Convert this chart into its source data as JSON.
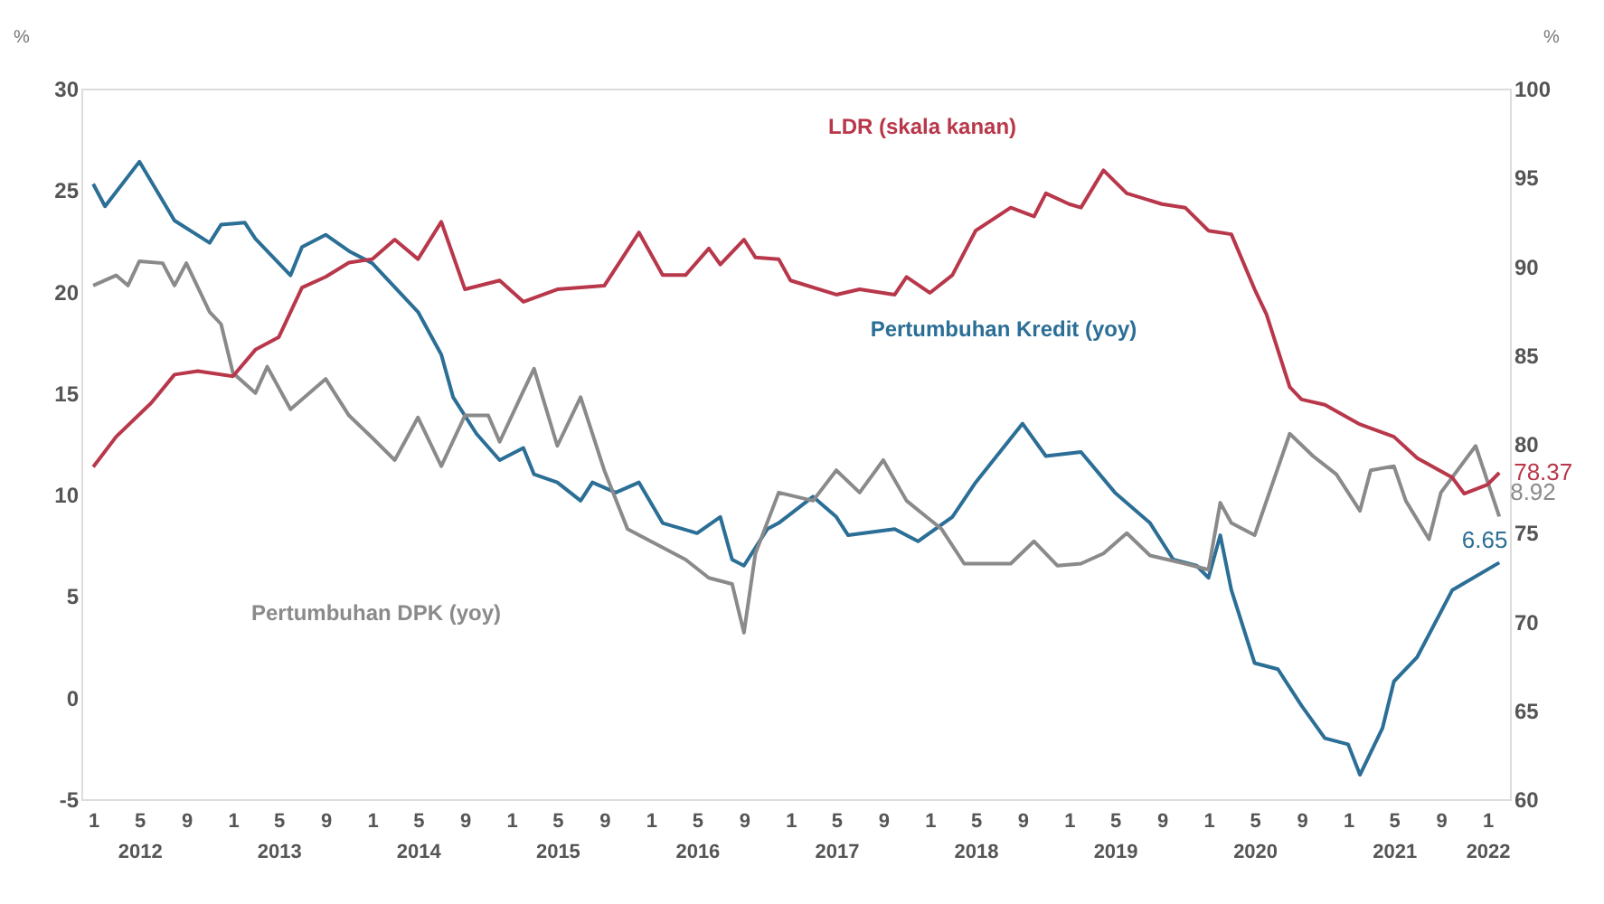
{
  "chart_data": {
    "type": "line",
    "ylabel": "%",
    "y2label": "%",
    "xlim": [
      "2011-12",
      "2022-03"
    ],
    "xticks": [
      {
        "value": "2012-01",
        "label": "1"
      },
      {
        "value": "2012-05",
        "label": "5\n2012"
      },
      {
        "value": "2012-09",
        "label": "9"
      },
      {
        "value": "2013-01",
        "label": "1"
      },
      {
        "value": "2013-05",
        "label": "5\n2013"
      },
      {
        "value": "2013-09",
        "label": "9"
      },
      {
        "value": "2014-01",
        "label": "1"
      },
      {
        "value": "2014-05",
        "label": "5\n2014"
      },
      {
        "value": "2014-09",
        "label": "9"
      },
      {
        "value": "2015-01",
        "label": "1"
      },
      {
        "value": "2015-05",
        "label": "5\n2015"
      },
      {
        "value": "2015-09",
        "label": "9"
      },
      {
        "value": "2016-01",
        "label": "1"
      },
      {
        "value": "2016-05",
        "label": "5\n2016"
      },
      {
        "value": "2016-09",
        "label": "9"
      },
      {
        "value": "2017-01",
        "label": "1"
      },
      {
        "value": "2017-05",
        "label": "5\n2017"
      },
      {
        "value": "2017-09",
        "label": "9"
      },
      {
        "value": "2018-01",
        "label": "1"
      },
      {
        "value": "2018-05",
        "label": "5\n2018"
      },
      {
        "value": "2018-09",
        "label": "9"
      },
      {
        "value": "2019-01",
        "label": "1"
      },
      {
        "value": "2019-05",
        "label": "5\n2019"
      },
      {
        "value": "2019-09",
        "label": "9"
      },
      {
        "value": "2020-01",
        "label": "1"
      },
      {
        "value": "2020-05",
        "label": "5\n2020"
      },
      {
        "value": "2020-09",
        "label": "9"
      },
      {
        "value": "2021-01",
        "label": "1"
      },
      {
        "value": "2021-05",
        "label": "5\n2021"
      },
      {
        "value": "2021-09",
        "label": "9"
      },
      {
        "value": "2022-01",
        "label": "1\n2022"
      }
    ],
    "ylim": [
      -5,
      30
    ],
    "yticks": [
      -5,
      0,
      5,
      10,
      15,
      20,
      25,
      30
    ],
    "y2lim": [
      60,
      100
    ],
    "y2ticks": [
      60,
      65,
      70,
      75,
      80,
      85,
      90,
      95,
      100
    ],
    "series": [
      {
        "name": "LDR (skala kanan)",
        "color": "#b8374a",
        "axis": "y2",
        "x": [
          "2012-01",
          "2012-03",
          "2012-06",
          "2012-08",
          "2012-10",
          "2013-01",
          "2013-03",
          "2013-05",
          "2013-07",
          "2013-09",
          "2013-11",
          "2014-01",
          "2014-03",
          "2014-05",
          "2014-07",
          "2014-09",
          "2014-12",
          "2015-02",
          "2015-05",
          "2015-09",
          "2015-12",
          "2016-02",
          "2016-04",
          "2016-06",
          "2016-07",
          "2016-09",
          "2016-10",
          "2016-12",
          "2017-01",
          "2017-05",
          "2017-07",
          "2017-10",
          "2017-11",
          "2018-01",
          "2018-03",
          "2018-05",
          "2018-08",
          "2018-10",
          "2018-11",
          "2019-01",
          "2019-02",
          "2019-04",
          "2019-06",
          "2019-09",
          "2019-11",
          "2020-01",
          "2020-03",
          "2020-05",
          "2020-06",
          "2020-08",
          "2020-09",
          "2020-11",
          "2021-02",
          "2021-05",
          "2021-07",
          "2021-10",
          "2021-11",
          "2022-01",
          "2022-02"
        ],
        "values": [
          78.7,
          80.4,
          82.3,
          83.9,
          84.1,
          83.8,
          85.3,
          86.0,
          88.8,
          89.4,
          90.2,
          90.4,
          91.5,
          90.4,
          92.5,
          88.7,
          89.2,
          88.0,
          88.7,
          88.9,
          91.9,
          89.5,
          89.5,
          91.0,
          90.1,
          91.5,
          90.5,
          90.4,
          89.2,
          88.4,
          88.7,
          88.4,
          89.4,
          88.5,
          89.5,
          92.0,
          93.3,
          92.8,
          94.1,
          93.5,
          93.3,
          95.4,
          94.1,
          93.5,
          93.3,
          92.0,
          91.8,
          88.7,
          87.3,
          83.2,
          82.5,
          82.2,
          81.1,
          80.4,
          79.2,
          78.1,
          77.2,
          77.7,
          78.37
        ],
        "value_labels": [
          null,
          null,
          null,
          null,
          null,
          null,
          null,
          null,
          null,
          null,
          null,
          null,
          null,
          null,
          null,
          null,
          null,
          null,
          null,
          null,
          null,
          null,
          null,
          null,
          null,
          null,
          null,
          null,
          null,
          null,
          null,
          null,
          null,
          null,
          null,
          null,
          null,
          null,
          null,
          null,
          null,
          null,
          null,
          null,
          null,
          null,
          null,
          null,
          null,
          null,
          null,
          null,
          null,
          null,
          null,
          null,
          null,
          null,
          "78.37"
        ]
      },
      {
        "name": "Pertumbuhan Kredit (yoy)",
        "color": "#2b6e96",
        "x": [
          "2012-01",
          "2012-02",
          "2012-05",
          "2012-08",
          "2012-11",
          "2012-12",
          "2013-02",
          "2013-03",
          "2013-06",
          "2013-07",
          "2013-09",
          "2013-11",
          "2014-01",
          "2014-05",
          "2014-07",
          "2014-08",
          "2014-10",
          "2014-12",
          "2015-02",
          "2015-03",
          "2015-05",
          "2015-07",
          "2015-08",
          "2015-10",
          "2015-12",
          "2016-02",
          "2016-05",
          "2016-07",
          "2016-08",
          "2016-09",
          "2016-11",
          "2016-12",
          "2017-03",
          "2017-05",
          "2017-06",
          "2017-10",
          "2017-12",
          "2018-03",
          "2018-05",
          "2018-09",
          "2018-11",
          "2019-02",
          "2019-05",
          "2019-08",
          "2019-10",
          "2019-12",
          "2020-01",
          "2020-02",
          "2020-03",
          "2020-05",
          "2020-07",
          "2020-09",
          "2020-11",
          "2021-01",
          "2021-02",
          "2021-04",
          "2021-05",
          "2021-07",
          "2021-10",
          "2022-02"
        ],
        "values": [
          25.3,
          24.2,
          26.4,
          23.5,
          22.4,
          23.3,
          23.4,
          22.6,
          20.8,
          22.2,
          22.8,
          22.0,
          21.4,
          19.0,
          16.9,
          14.8,
          13.0,
          11.7,
          12.3,
          11.0,
          10.6,
          9.7,
          10.6,
          10.1,
          10.6,
          8.6,
          8.1,
          8.9,
          6.8,
          6.5,
          8.3,
          8.6,
          9.9,
          8.9,
          8.0,
          8.3,
          7.7,
          8.9,
          10.6,
          13.5,
          11.9,
          12.1,
          10.1,
          8.6,
          6.8,
          6.5,
          5.9,
          8.0,
          5.3,
          1.7,
          1.4,
          -0.4,
          -2.0,
          -2.3,
          -3.8,
          -1.5,
          0.8,
          2.0,
          5.3,
          6.65
        ],
        "value_labels": [
          null,
          null,
          null,
          null,
          null,
          null,
          null,
          null,
          null,
          null,
          null,
          null,
          null,
          null,
          null,
          null,
          null,
          null,
          null,
          null,
          null,
          null,
          null,
          null,
          null,
          null,
          null,
          null,
          null,
          null,
          null,
          null,
          null,
          null,
          null,
          null,
          null,
          null,
          null,
          null,
          null,
          null,
          null,
          null,
          null,
          null,
          null,
          null,
          null,
          null,
          null,
          null,
          null,
          null,
          null,
          null,
          null,
          null,
          null,
          "6.65"
        ]
      },
      {
        "name": "Pertumbuhan DPK (yoy)",
        "color": "#8a8a8a",
        "x": [
          "2012-01",
          "2012-03",
          "2012-04",
          "2012-05",
          "2012-07",
          "2012-08",
          "2012-09",
          "2012-11",
          "2012-12",
          "2013-01",
          "2013-03",
          "2013-04",
          "2013-06",
          "2013-09",
          "2013-11",
          "2014-01",
          "2014-03",
          "2014-05",
          "2014-07",
          "2014-09",
          "2014-11",
          "2014-12",
          "2015-02",
          "2015-03",
          "2015-05",
          "2015-07",
          "2015-09",
          "2015-11",
          "2016-04",
          "2016-06",
          "2016-08",
          "2016-09",
          "2016-10",
          "2016-12",
          "2017-03",
          "2017-05",
          "2017-07",
          "2017-09",
          "2017-11",
          "2018-02",
          "2018-04",
          "2018-08",
          "2018-10",
          "2018-12",
          "2019-02",
          "2019-04",
          "2019-06",
          "2019-08",
          "2019-11",
          "2020-01",
          "2020-02",
          "2020-03",
          "2020-05",
          "2020-08",
          "2020-10",
          "2020-12",
          "2021-02",
          "2021-03",
          "2021-05",
          "2021-06",
          "2021-08",
          "2021-09",
          "2021-12",
          "2022-02"
        ],
        "values": [
          20.3,
          20.8,
          20.3,
          21.5,
          21.4,
          20.3,
          21.4,
          19.0,
          18.4,
          16.0,
          15.0,
          16.3,
          14.2,
          15.7,
          13.9,
          12.8,
          11.7,
          13.8,
          11.4,
          13.9,
          13.9,
          12.6,
          15.1,
          16.2,
          12.4,
          14.8,
          11.2,
          8.3,
          6.8,
          5.9,
          5.6,
          3.2,
          7.1,
          10.1,
          9.7,
          11.2,
          10.1,
          11.7,
          9.7,
          8.3,
          6.6,
          6.6,
          7.7,
          6.5,
          6.6,
          7.1,
          8.1,
          7.0,
          6.6,
          6.3,
          9.6,
          8.6,
          8.0,
          13.0,
          11.9,
          11.0,
          9.2,
          11.2,
          11.4,
          9.7,
          7.8,
          10.1,
          12.4,
          8.92
        ],
        "value_labels": [
          null,
          null,
          null,
          null,
          null,
          null,
          null,
          null,
          null,
          null,
          null,
          null,
          null,
          null,
          null,
          null,
          null,
          null,
          null,
          null,
          null,
          null,
          null,
          null,
          null,
          null,
          null,
          null,
          null,
          null,
          null,
          null,
          null,
          null,
          null,
          null,
          null,
          null,
          null,
          null,
          null,
          null,
          null,
          null,
          null,
          null,
          null,
          null,
          null,
          null,
          null,
          null,
          null,
          null,
          null,
          null,
          null,
          null,
          null,
          null,
          null,
          null,
          null,
          "8.92"
        ]
      }
    ]
  }
}
